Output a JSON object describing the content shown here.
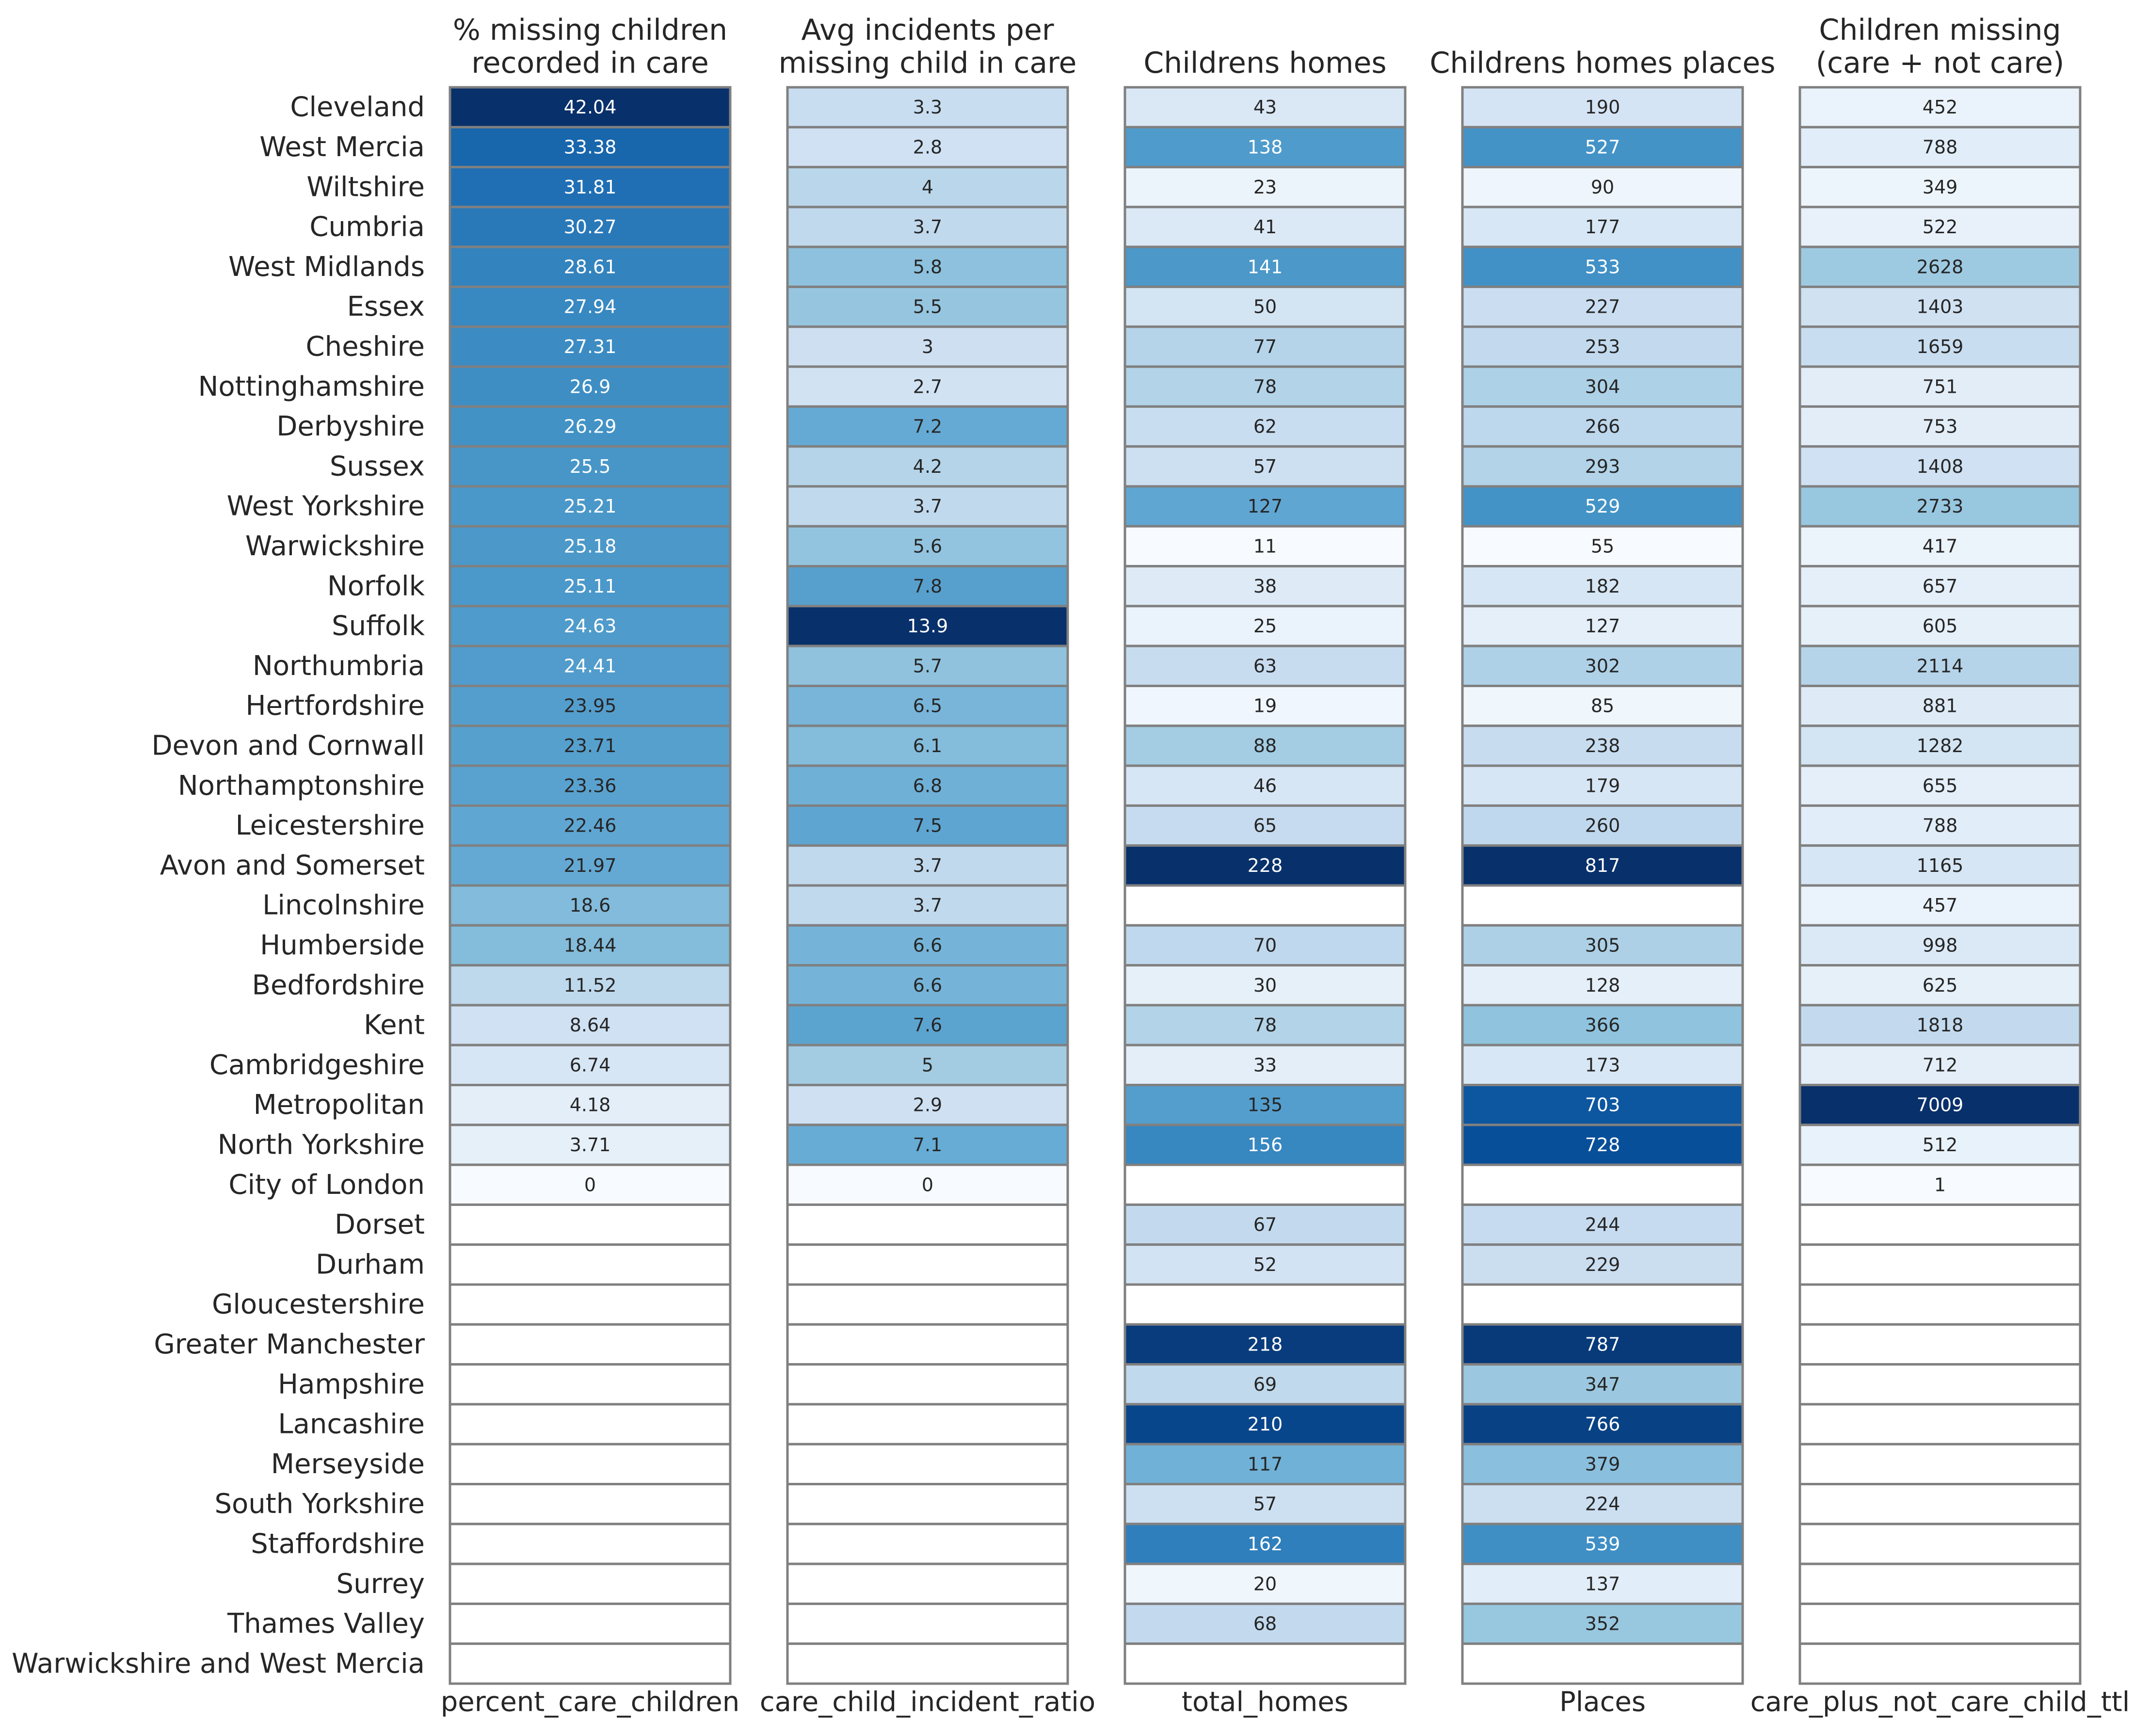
{
  "chart_data": {
    "type": "heatmap",
    "colormap": "Blues",
    "cell_border_color": "#808080",
    "missing_cell_color": "#ffffff",
    "rows": [
      "Cleveland",
      "West Mercia",
      "Wiltshire",
      "Cumbria",
      "West Midlands",
      "Essex",
      "Cheshire",
      "Nottinghamshire",
      "Derbyshire",
      "Sussex",
      "West Yorkshire",
      "Warwickshire",
      "Norfolk",
      "Suffolk",
      "Northumbria",
      "Hertfordshire",
      "Devon and Cornwall",
      "Northamptonshire",
      "Leicestershire",
      "Avon and Somerset",
      "Lincolnshire",
      "Humberside",
      "Bedfordshire",
      "Kent",
      "Cambridgeshire",
      "Metropolitan",
      "North Yorkshire",
      "City of London",
      "Dorset",
      "Durham",
      "Gloucestershire",
      "Greater Manchester",
      "Hampshire",
      "Lancashire",
      "Merseyside",
      "South Yorkshire",
      "Staffordshire",
      "Surrey",
      "Thames Valley",
      "Warwickshire and West Mercia"
    ],
    "columns": [
      {
        "title": [
          "% missing children",
          "recorded in care"
        ],
        "xlabel": "percent_care_children",
        "vmin": 0,
        "vmax": 42.04,
        "values": [
          42.04,
          33.38,
          31.81,
          30.27,
          28.61,
          27.94,
          27.31,
          26.9,
          26.29,
          25.5,
          25.21,
          25.18,
          25.11,
          24.63,
          24.41,
          23.95,
          23.71,
          23.36,
          22.46,
          21.97,
          18.6,
          18.44,
          11.52,
          8.64,
          6.74,
          4.18,
          3.71,
          0,
          null,
          null,
          null,
          null,
          null,
          null,
          null,
          null,
          null,
          null,
          null,
          null
        ],
        "labels": [
          "42.04",
          "33.38",
          "31.81",
          "30.27",
          "28.61",
          "27.94",
          "27.31",
          "26.9",
          "26.29",
          "25.5",
          "25.21",
          "25.18",
          "25.11",
          "24.63",
          "24.41",
          "23.95",
          "23.71",
          "23.36",
          "22.46",
          "21.97",
          "18.6",
          "18.44",
          "11.52",
          "8.64",
          "6.74",
          "4.18",
          "3.71",
          "0",
          "",
          "",
          "",
          "",
          "",
          "",
          "",
          "",
          "",
          "",
          "",
          ""
        ]
      },
      {
        "title": [
          "Avg incidents per",
          "missing child in care"
        ],
        "xlabel": "care_child_incident_ratio",
        "vmin": 0,
        "vmax": 13.9,
        "values": [
          3.3,
          2.8,
          4,
          3.7,
          5.8,
          5.5,
          3,
          2.7,
          7.2,
          4.2,
          3.7,
          5.6,
          7.8,
          13.9,
          5.7,
          6.5,
          6.1,
          6.8,
          7.5,
          3.7,
          3.7,
          6.6,
          6.6,
          7.6,
          5,
          2.9,
          7.1,
          0,
          null,
          null,
          null,
          null,
          null,
          null,
          null,
          null,
          null,
          null,
          null,
          null
        ],
        "labels": [
          "3.3",
          "2.8",
          "4",
          "3.7",
          "5.8",
          "5.5",
          "3",
          "2.7",
          "7.2",
          "4.2",
          "3.7",
          "5.6",
          "7.8",
          "13.9",
          "5.7",
          "6.5",
          "6.1",
          "6.8",
          "7.5",
          "3.7",
          "3.7",
          "6.6",
          "6.6",
          "7.6",
          "5",
          "2.9",
          "7.1",
          "0",
          "",
          "",
          "",
          "",
          "",
          "",
          "",
          "",
          "",
          "",
          "",
          ""
        ]
      },
      {
        "title": [
          "Childrens homes"
        ],
        "xlabel": "total_homes",
        "vmin": 11,
        "vmax": 228,
        "values": [
          43,
          138,
          23,
          41,
          141,
          50,
          77,
          78,
          62,
          57,
          127,
          11,
          38,
          25,
          63,
          19,
          88,
          46,
          65,
          228,
          null,
          70,
          30,
          78,
          33,
          135,
          156,
          null,
          67,
          52,
          null,
          218,
          69,
          210,
          117,
          57,
          162,
          20,
          68,
          null
        ],
        "labels": [
          "43",
          "138",
          "23",
          "41",
          "141",
          "50",
          "77",
          "78",
          "62",
          "57",
          "127",
          "11",
          "38",
          "25",
          "63",
          "19",
          "88",
          "46",
          "65",
          "228",
          "",
          "70",
          "30",
          "78",
          "33",
          "135",
          "156",
          "",
          "67",
          "52",
          "",
          "218",
          "69",
          "210",
          "117",
          "57",
          "162",
          "20",
          "68",
          ""
        ]
      },
      {
        "title": [
          "Childrens homes places"
        ],
        "xlabel": "Places",
        "vmin": 55,
        "vmax": 817,
        "values": [
          190,
          527,
          90,
          177,
          533,
          227,
          253,
          304,
          266,
          293,
          529,
          55,
          182,
          127,
          302,
          85,
          238,
          179,
          260,
          817,
          null,
          305,
          128,
          366,
          173,
          703,
          728,
          null,
          244,
          229,
          null,
          787,
          347,
          766,
          379,
          224,
          539,
          137,
          352,
          null
        ],
        "labels": [
          "190",
          "527",
          "90",
          "177",
          "533",
          "227",
          "253",
          "304",
          "266",
          "293",
          "529",
          "55",
          "182",
          "127",
          "302",
          "85",
          "238",
          "179",
          "260",
          "817",
          "",
          "305",
          "128",
          "366",
          "173",
          "703",
          "728",
          "",
          "244",
          "229",
          "",
          "787",
          "347",
          "766",
          "379",
          "224",
          "539",
          "137",
          "352",
          ""
        ]
      },
      {
        "title": [
          "Children missing",
          "(care + not care)"
        ],
        "xlabel": "care_plus_not_care_child_ttl",
        "vmin": 1,
        "vmax": 7009,
        "values": [
          452,
          788,
          349,
          522,
          2628,
          1403,
          1659,
          751,
          753,
          1408,
          2733,
          417,
          657,
          605,
          2114,
          881,
          1282,
          655,
          788,
          1165,
          457,
          998,
          625,
          1818,
          712,
          7009,
          512,
          1,
          null,
          null,
          null,
          null,
          null,
          null,
          null,
          null,
          null,
          null,
          null,
          null
        ],
        "labels": [
          "452",
          "788",
          "349",
          "522",
          "2628",
          "1403",
          "1659",
          "751",
          "753",
          "1408",
          "2733",
          "417",
          "657",
          "605",
          "2114",
          "881",
          "1282",
          "655",
          "788",
          "1165",
          "457",
          "998",
          "625",
          "1818",
          "712",
          "7009",
          "512",
          "1",
          "",
          "",
          "",
          "",
          "",
          "",
          "",
          "",
          "",
          "",
          "",
          ""
        ]
      }
    ]
  }
}
